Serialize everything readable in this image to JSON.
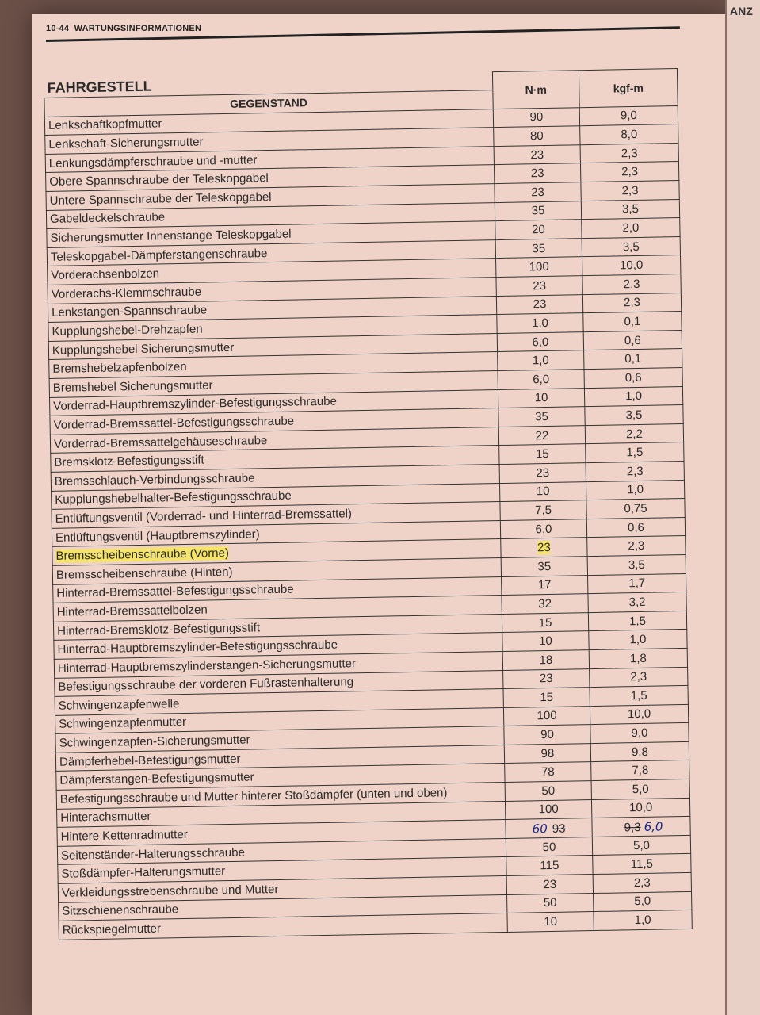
{
  "header": {
    "page_number": "10-44",
    "chapter": "WARTUNGSINFORMATIONEN"
  },
  "section_title": "FAHRGESTELL",
  "right_page_fragment": "ANZ",
  "highlight_color": "#f5e36a",
  "table": {
    "columns": [
      "GEGENSTAND",
      "N·m",
      "kgf-m"
    ],
    "rows": [
      {
        "item": "Lenkschaftkopfmutter",
        "nm": "90",
        "kgf": "9,0"
      },
      {
        "item": "Lenkschaft-Sicherungsmutter",
        "nm": "80",
        "kgf": "8,0"
      },
      {
        "item": "Lenkungsdämpferschraube und -mutter",
        "nm": "23",
        "kgf": "2,3"
      },
      {
        "item": "Obere Spannschraube der Teleskopgabel",
        "nm": "23",
        "kgf": "2,3"
      },
      {
        "item": "Untere Spannschraube der Teleskopgabel",
        "nm": "23",
        "kgf": "2,3"
      },
      {
        "item": "Gabeldeckelschraube",
        "nm": "35",
        "kgf": "3,5"
      },
      {
        "item": "Sicherungsmutter Innenstange Teleskopgabel",
        "nm": "20",
        "kgf": "2,0"
      },
      {
        "item": "Teleskopgabel-Dämpferstangenschraube",
        "nm": "35",
        "kgf": "3,5"
      },
      {
        "item": "Vorderachsenbolzen",
        "nm": "100",
        "kgf": "10,0"
      },
      {
        "item": "Vorderachs-Klemmschraube",
        "nm": "23",
        "kgf": "2,3"
      },
      {
        "item": "Lenkstangen-Spannschraube",
        "nm": "23",
        "kgf": "2,3"
      },
      {
        "item": "Kupplungshebel-Drehzapfen",
        "nm": "1,0",
        "kgf": "0,1"
      },
      {
        "item": "Kupplungshebel Sicherungsmutter",
        "nm": "6,0",
        "kgf": "0,6"
      },
      {
        "item": "Bremshebelzapfenbolzen",
        "nm": "1,0",
        "kgf": "0,1"
      },
      {
        "item": "Bremshebel Sicherungsmutter",
        "nm": "6,0",
        "kgf": "0,6"
      },
      {
        "item": "Vorderrad-Hauptbremszylinder-Befestigungsschraube",
        "nm": "10",
        "kgf": "1,0"
      },
      {
        "item": "Vorderrad-Bremssattel-Befestigungsschraube",
        "nm": "35",
        "kgf": "3,5"
      },
      {
        "item": "Vorderrad-Bremssattelgehäuseschraube",
        "nm": "22",
        "kgf": "2,2"
      },
      {
        "item": "Bremsklotz-Befestigungsstift",
        "nm": "15",
        "kgf": "1,5"
      },
      {
        "item": "Bremsschlauch-Verbindungsschraube",
        "nm": "23",
        "kgf": "2,3"
      },
      {
        "item": "Kupplungshebelhalter-Befestigungsschraube",
        "nm": "10",
        "kgf": "1,0"
      },
      {
        "item": "Entlüftungsventil (Vorderrad- und Hinterrad-Bremssattel)",
        "nm": "7,5",
        "kgf": "0,75"
      },
      {
        "item": "Entlüftungsventil (Hauptbremszylinder)",
        "nm": "6,0",
        "kgf": "0,6"
      },
      {
        "item": "Bremsscheibenschraube (Vorne)",
        "nm": "23",
        "kgf": "2,3",
        "highlighted": true
      },
      {
        "item": "Bremsscheibenschraube (Hinten)",
        "nm": "35",
        "kgf": "3,5"
      },
      {
        "item": "Hinterrad-Bremssattel-Befestigungsschraube",
        "nm": "17",
        "kgf": "1,7"
      },
      {
        "item": "Hinterrad-Bremssattelbolzen",
        "nm": "32",
        "kgf": "3,2"
      },
      {
        "item": "Hinterrad-Bremsklotz-Befestigungsstift",
        "nm": "15",
        "kgf": "1,5"
      },
      {
        "item": "Hinterrad-Hauptbremszylinder-Befestigungsschraube",
        "nm": "10",
        "kgf": "1,0"
      },
      {
        "item": "Hinterrad-Hauptbremszylinderstangen-Sicherungsmutter",
        "nm": "18",
        "kgf": "1,8"
      },
      {
        "item": "Befestigungsschraube der vorderen Fußrastenhalterung",
        "nm": "23",
        "kgf": "2,3"
      },
      {
        "item": "Schwingenzapfenwelle",
        "nm": "15",
        "kgf": "1,5"
      },
      {
        "item": "Schwingenzapfenmutter",
        "nm": "100",
        "kgf": "10,0"
      },
      {
        "item": "Schwingenzapfen-Sicherungsmutter",
        "nm": "90",
        "kgf": "9,0"
      },
      {
        "item": "Dämpferhebel-Befestigungsmutter",
        "nm": "98",
        "kgf": "9,8"
      },
      {
        "item": "Dämpferstangen-Befestigungsmutter",
        "nm": "78",
        "kgf": "7,8"
      },
      {
        "item": "Befestigungsschraube und Mutter hinterer Stoßdämpfer (unten und oben)",
        "nm": "50",
        "kgf": "5,0"
      },
      {
        "item": "Hinterachsmutter",
        "nm": "100",
        "kgf": "10,0"
      },
      {
        "item": "Hintere Kettenradmutter",
        "nm": "93",
        "kgf": "9,3",
        "handwritten_nm": "60",
        "handwritten_kgf": "6,0"
      },
      {
        "item": "Seitenständer-Halterungsschraube",
        "nm": "50",
        "kgf": "5,0"
      },
      {
        "item": "Stoßdämpfer-Halterungsmutter",
        "nm": "115",
        "kgf": "11,5"
      },
      {
        "item": "Verkleidungsstrebenschraube und Mutter",
        "nm": "23",
        "kgf": "2,3"
      },
      {
        "item": "Sitzschienenschraube",
        "nm": "50",
        "kgf": "5,0"
      },
      {
        "item": "Rückspiegelmutter",
        "nm": "10",
        "kgf": "1,0"
      }
    ]
  }
}
